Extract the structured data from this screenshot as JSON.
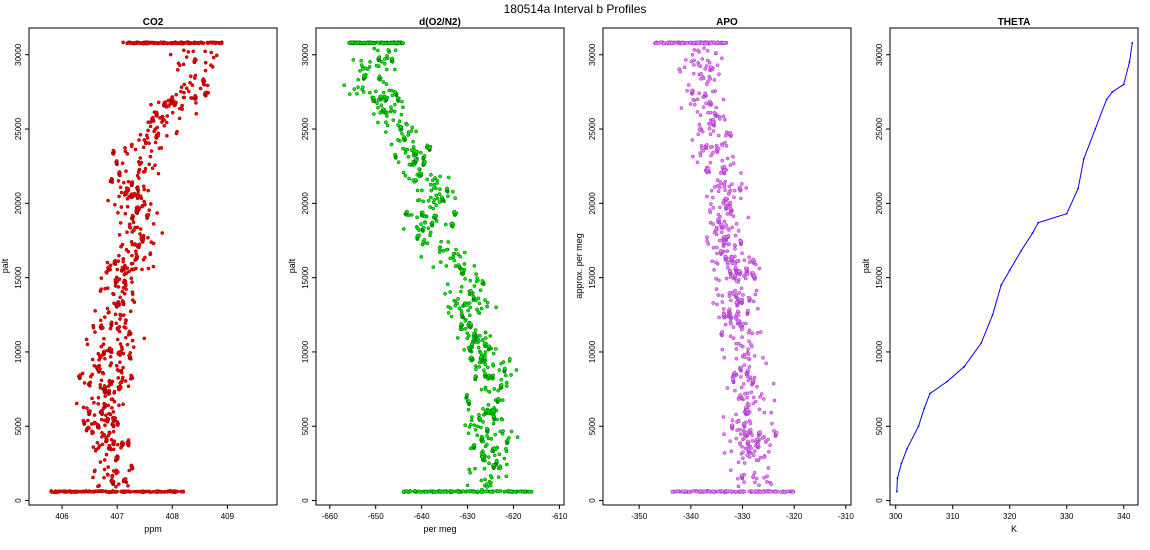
{
  "figure_title": "180514a   Interval b Profiles",
  "chart_data": [
    {
      "type": "scatter",
      "title": "CO2",
      "xlabel": "ppm",
      "ylabel": "palt",
      "xlim": [
        405.4,
        409.9
      ],
      "ylim": [
        -300,
        31800
      ],
      "xticks": [
        406,
        407,
        408,
        409
      ],
      "yticks": [
        0,
        5000,
        10000,
        15000,
        20000,
        25000,
        30000
      ],
      "color": "#ff0000",
      "edge_color": "#8b0000",
      "profile": [
        [
          0,
          407.2
        ],
        [
          1500,
          406.9
        ],
        [
          3500,
          406.8
        ],
        [
          6000,
          406.7
        ],
        [
          9000,
          406.9
        ],
        [
          12000,
          407.0
        ],
        [
          15000,
          407.1
        ],
        [
          18000,
          407.4
        ],
        [
          21000,
          407.3
        ],
        [
          24000,
          407.5
        ],
        [
          26000,
          407.9
        ],
        [
          28000,
          408.5
        ],
        [
          30000,
          408.4
        ]
      ],
      "spread": 0.35,
      "clusters": [
        [
          600,
          407.0,
          1.2
        ],
        [
          30800,
          408.0,
          0.9
        ]
      ]
    },
    {
      "type": "scatter",
      "title": "d(O2/N2)",
      "xlabel": "per meg",
      "ylabel": "palt",
      "xlim": [
        -663,
        -609
      ],
      "ylim": [
        -300,
        31800
      ],
      "xticks": [
        -660,
        -650,
        -640,
        -630,
        -620,
        -610
      ],
      "yticks": [
        0,
        5000,
        10000,
        15000,
        20000,
        25000,
        30000
      ],
      "color": "#00ee00",
      "edge_color": "#006400",
      "profile": [
        [
          0,
          -625
        ],
        [
          3000,
          -625
        ],
        [
          6000,
          -626
        ],
        [
          9000,
          -625
        ],
        [
          12000,
          -630
        ],
        [
          15000,
          -630
        ],
        [
          18000,
          -640
        ],
        [
          21000,
          -637
        ],
        [
          24000,
          -643
        ],
        [
          26000,
          -647
        ],
        [
          28000,
          -652
        ],
        [
          30000,
          -650
        ]
      ],
      "spread": 4,
      "clusters": [
        [
          600,
          -630,
          14
        ],
        [
          30800,
          -650,
          6
        ]
      ]
    },
    {
      "type": "scatter",
      "title": "APO",
      "xlabel": "",
      "ylabel": "approx. per meg",
      "xlim": [
        -357,
        -309
      ],
      "ylim": [
        -300,
        31800
      ],
      "xticks": [
        -350,
        -340,
        -330,
        -320,
        -310
      ],
      "yticks": [
        0,
        5000,
        10000,
        15000,
        20000,
        25000,
        30000
      ],
      "color": "#ee82ee",
      "edge_color": "#9932cc",
      "profile": [
        [
          0,
          -328
        ],
        [
          3000,
          -329
        ],
        [
          6000,
          -328
        ],
        [
          9000,
          -329
        ],
        [
          12000,
          -331
        ],
        [
          15000,
          -331
        ],
        [
          18000,
          -334
        ],
        [
          21000,
          -333
        ],
        [
          24000,
          -336
        ],
        [
          27000,
          -337
        ],
        [
          30000,
          -338
        ]
      ],
      "spread": 3.5,
      "clusters": [
        [
          600,
          -332,
          12
        ],
        [
          30800,
          -340,
          7
        ]
      ]
    },
    {
      "type": "line",
      "title": "THETA",
      "xlabel": "K",
      "ylabel": "palt",
      "xlim": [
        299,
        342.5
      ],
      "ylim": [
        -300,
        31800
      ],
      "xticks": [
        300,
        310,
        320,
        330,
        340
      ],
      "yticks": [
        0,
        5000,
        10000,
        15000,
        20000,
        25000,
        30000
      ],
      "color": "#0000ff",
      "line": [
        [
          300.2,
          600
        ],
        [
          300.3,
          1500
        ],
        [
          301,
          2500
        ],
        [
          302,
          3500
        ],
        [
          304,
          5000
        ],
        [
          305,
          6200
        ],
        [
          306,
          7200
        ],
        [
          309,
          8000
        ],
        [
          312,
          9000
        ],
        [
          315,
          10600
        ],
        [
          317,
          12500
        ],
        [
          318.5,
          14500
        ],
        [
          320,
          15500
        ],
        [
          322,
          16800
        ],
        [
          324,
          18000
        ],
        [
          325,
          18700
        ],
        [
          330,
          19300
        ],
        [
          332,
          21000
        ],
        [
          333,
          23000
        ],
        [
          335,
          25000
        ],
        [
          337,
          27000
        ],
        [
          338,
          27500
        ],
        [
          340,
          28000
        ],
        [
          341,
          29500
        ],
        [
          341.5,
          30800
        ]
      ]
    }
  ]
}
